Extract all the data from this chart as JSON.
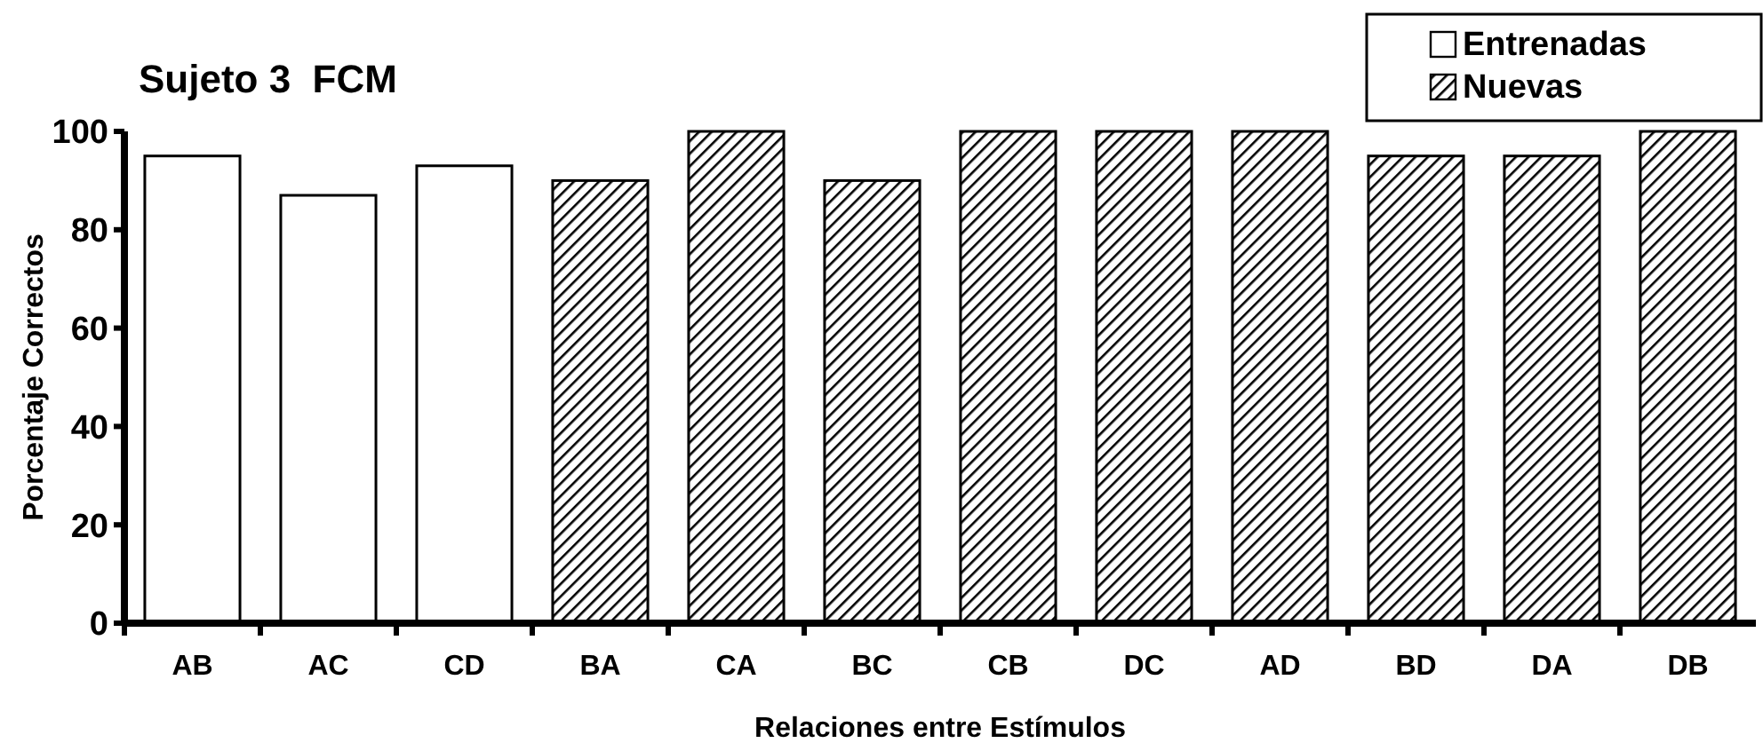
{
  "chart_data": {
    "type": "bar",
    "title": "Sujeto 3  FCM",
    "xlabel": "Relaciones entre Estímulos",
    "ylabel": "Porcentaje Correctos",
    "categories": [
      "AB",
      "AC",
      "CD",
      "BA",
      "CA",
      "BC",
      "CB",
      "DC",
      "AD",
      "BD",
      "DA",
      "DB"
    ],
    "series": [
      {
        "name": "Entrenadas",
        "color": "#ffffff",
        "values": [
          95,
          87,
          93,
          null,
          null,
          null,
          null,
          null,
          null,
          null,
          null,
          null
        ]
      },
      {
        "name": "Nuevas",
        "color": "#000000",
        "values": [
          null,
          null,
          null,
          90,
          100,
          90,
          100,
          100,
          100,
          95,
          95,
          100
        ]
      }
    ],
    "ylim": [
      0,
      100
    ],
    "yticks": [
      0,
      20,
      40,
      60,
      80,
      100
    ],
    "legend": "top right",
    "grid": false
  }
}
